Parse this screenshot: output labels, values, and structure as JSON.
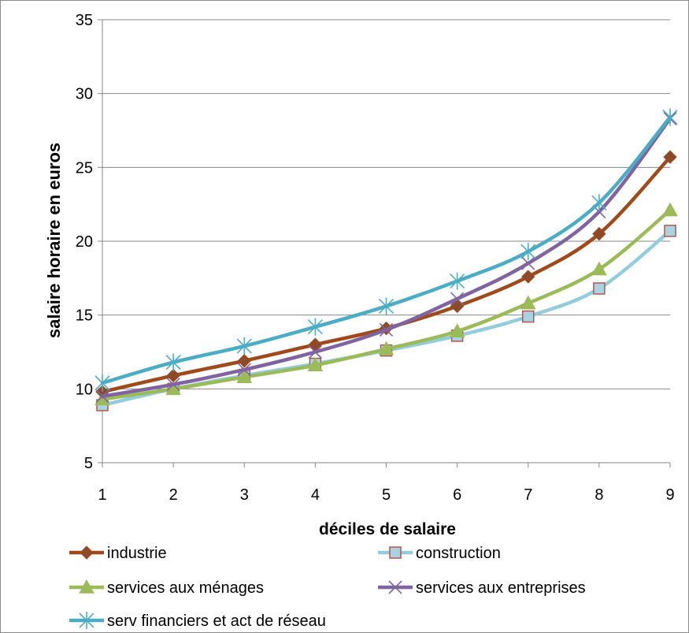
{
  "chart_data": {
    "type": "line",
    "title": "",
    "xlabel": "déciles de salaire",
    "ylabel": "salaire horaire en euros",
    "x": [
      1,
      2,
      3,
      4,
      5,
      6,
      7,
      8,
      9
    ],
    "ylim": [
      5,
      35
    ],
    "yticks": [
      5,
      10,
      15,
      20,
      25,
      30,
      35
    ],
    "grid": "horizontal",
    "legend_position": "bottom",
    "series": [
      {
        "name": "industrie",
        "color": "#a0491a",
        "marker": "diamond",
        "values": [
          9.8,
          10.9,
          11.9,
          13.0,
          14.1,
          15.6,
          17.6,
          20.5,
          25.7
        ]
      },
      {
        "name": "construction",
        "color": "#93cddd",
        "marker": "square",
        "values": [
          8.9,
          10.0,
          10.9,
          11.7,
          12.6,
          13.6,
          14.9,
          16.8,
          20.7
        ]
      },
      {
        "name": "services aux ménages",
        "color": "#9bbb59",
        "marker": "triangle",
        "values": [
          9.3,
          10.0,
          10.8,
          11.6,
          12.7,
          13.9,
          15.8,
          18.1,
          22.1
        ]
      },
      {
        "name": "services aux entreprises",
        "color": "#8064a2",
        "marker": "x",
        "values": [
          9.5,
          10.3,
          11.3,
          12.5,
          14.0,
          16.1,
          18.5,
          22.0,
          28.3
        ]
      },
      {
        "name": "serv financiers et act de réseau",
        "color": "#4bacc6",
        "marker": "asterisk",
        "values": [
          10.4,
          11.8,
          12.9,
          14.2,
          15.6,
          17.3,
          19.3,
          22.6,
          28.4
        ]
      }
    ]
  }
}
